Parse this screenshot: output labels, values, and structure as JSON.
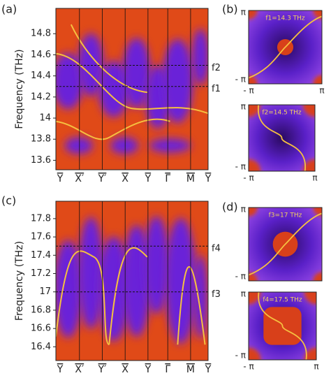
{
  "chart_data": [
    {
      "type": "heatmap",
      "panel_label": "(a)",
      "y_label": "Frequency (THz)",
      "categories": [
        "Y",
        "X′",
        "Y′",
        "X",
        "Y",
        "Γ",
        "M",
        "Y"
      ],
      "ylim": [
        13.51,
        15.04
      ],
      "yticks": [
        13.6,
        13.8,
        14,
        14.2,
        14.4,
        14.6,
        14.8
      ],
      "markers": [
        {
          "label": "f2",
          "value": 14.5
        },
        {
          "label": "f1",
          "value": 14.3
        }
      ]
    },
    {
      "type": "heatmap",
      "panel_label": "(c)",
      "y_label": "Frequency (THz)",
      "categories": [
        "Y",
        "X′",
        "Y′",
        "X",
        "Y",
        "Γ",
        "M",
        "Y"
      ],
      "ylim": [
        16.25,
        17.99
      ],
      "yticks": [
        16.4,
        16.6,
        16.8,
        17,
        17.2,
        17.4,
        17.6,
        17.8
      ],
      "markers": [
        {
          "label": "f4",
          "value": 17.5
        },
        {
          "label": "f3",
          "value": 17
        }
      ]
    }
  ],
  "insets": [
    {
      "panel_label": "(b)",
      "maps": [
        {
          "title": "f1=14.3 THz"
        },
        {
          "title": "f2=14.5 THz"
        }
      ]
    },
    {
      "panel_label": "(d)",
      "maps": [
        {
          "title": "f3=17 THz"
        },
        {
          "title": "f4=17.5 THz"
        }
      ]
    }
  ],
  "axis_labels": {
    "pi": "π",
    "neg_pi": "- π"
  }
}
